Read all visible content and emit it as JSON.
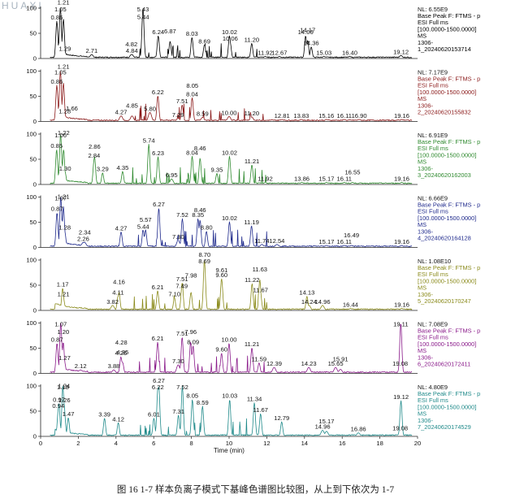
{
  "watermark": "HUAXI",
  "caption": "图 16 1-7 样本负离子模式下基峰色谱图比较图，从上到下依次为 1-7",
  "chart_data": {
    "type": "line",
    "xlabel": "Time (min)",
    "ylabel": "",
    "xlim": [
      0,
      20
    ],
    "ylim": [
      0,
      100
    ],
    "x_ticks": [
      0,
      2,
      4,
      6,
      8,
      10,
      12,
      14,
      16,
      18,
      20
    ],
    "y_ticks": [
      0,
      50,
      100
    ],
    "grid": false,
    "series": [
      {
        "color": "#000000",
        "nl": "NL: 6.55E9",
        "info": [
          "Base Peak F: FTMS - p",
          "ESI Full ms",
          "[100.0000-1500.0000]",
          "MS",
          "1306-",
          "1_20240620153714"
        ],
        "peaks": [
          [
            0.86,
            74
          ],
          [
            1.05,
            100
          ],
          [
            1.21,
            78
          ],
          [
            1.29,
            12
          ],
          [
            2.71,
            8
          ],
          [
            4.84,
            8
          ],
          [
            4.82,
            8
          ],
          [
            5.43,
            100
          ],
          [
            5.44,
            75
          ],
          [
            6.24,
            45
          ],
          [
            6.87,
            34
          ],
          [
            8.03,
            42
          ],
          [
            8.69,
            27
          ],
          [
            10.02,
            45
          ],
          [
            10.06,
            32
          ],
          [
            11.2,
            30
          ],
          [
            11.92,
            4
          ],
          [
            12.67,
            4
          ],
          [
            14.06,
            45
          ],
          [
            14.17,
            36
          ],
          [
            14.36,
            23
          ],
          [
            15.03,
            4
          ],
          [
            16.4,
            4
          ],
          [
            19.12,
            6
          ]
        ]
      },
      {
        "color": "#8b1a1a",
        "nl": "NL: 7.17E9",
        "info": [
          "Base Peak F: FTMS - p",
          "ESI Full ms",
          "[100.0000-1500.0000]",
          "MS",
          "1306-",
          "2_20240620155832"
        ],
        "peaks": [
          [
            0.86,
            72
          ],
          [
            1.05,
            100
          ],
          [
            1.21,
            76
          ],
          [
            1.28,
            13
          ],
          [
            1.66,
            6
          ],
          [
            4.27,
            11
          ],
          [
            4.85,
            11
          ],
          [
            5.8,
            18
          ],
          [
            6.22,
            51
          ],
          [
            7.29,
            6
          ],
          [
            7.51,
            33
          ],
          [
            8.04,
            47
          ],
          [
            8.05,
            38
          ],
          [
            8.59,
            8
          ],
          [
            10.0,
            10
          ],
          [
            11.2,
            9
          ],
          [
            12.81,
            4
          ],
          [
            13.83,
            4
          ],
          [
            15.16,
            4
          ],
          [
            16.11,
            4
          ],
          [
            16.9,
            4
          ],
          [
            19.16,
            4
          ]
        ]
      },
      {
        "color": "#2f8a2f",
        "nl": "NL: 6.91E9",
        "info": [
          "Base Peak F: FTMS - p",
          "ESI Full ms",
          "[100.0000-1500.0000]",
          "MS",
          "1306-",
          "3_20240620162003"
        ],
        "peaks": [
          [
            0.85,
            69
          ],
          [
            1.06,
            100
          ],
          [
            1.22,
            69
          ],
          [
            1.3,
            24
          ],
          [
            2.84,
            50
          ],
          [
            2.86,
            55
          ],
          [
            3.29,
            23
          ],
          [
            4.35,
            26
          ],
          [
            5.74,
            80
          ],
          [
            6.23,
            55
          ],
          [
            6.95,
            11
          ],
          [
            8.04,
            56
          ],
          [
            8.46,
            52
          ],
          [
            9.35,
            22
          ],
          [
            10.02,
            56
          ],
          [
            11.21,
            39
          ],
          [
            11.92,
            4
          ],
          [
            13.86,
            4
          ],
          [
            15.17,
            4
          ],
          [
            16.11,
            4
          ],
          [
            16.55,
            4
          ],
          [
            19.16,
            4
          ]
        ]
      },
      {
        "color": "#1f2a8c",
        "nl": "NL: 6.66E9",
        "info": [
          "Base Peak F: FTMS - p",
          "ESI Full ms",
          "[100.0000-1500.0000]",
          "MS",
          "1306-",
          "4_20240620164128"
        ],
        "peaks": [
          [
            0.87,
            69
          ],
          [
            1.07,
            100
          ],
          [
            1.21,
            81
          ],
          [
            1.28,
            32
          ],
          [
            2.26,
            10
          ],
          [
            2.34,
            10
          ],
          [
            4.27,
            31
          ],
          [
            5.44,
            34
          ],
          [
            5.57,
            35
          ],
          [
            6.27,
            78
          ],
          [
            7.3,
            14
          ],
          [
            7.52,
            57
          ],
          [
            8.35,
            57
          ],
          [
            8.8,
            32
          ],
          [
            8.46,
            54
          ],
          [
            10.02,
            51
          ],
          [
            11.19,
            43
          ],
          [
            11.74,
            6
          ],
          [
            12.54,
            6
          ],
          [
            15.17,
            4
          ],
          [
            16.11,
            4
          ],
          [
            16.49,
            4
          ],
          [
            19.16,
            4
          ]
        ]
      },
      {
        "color": "#8a8a1a",
        "nl": "NL: 1.08E10",
        "info": [
          "Base Peak F: FTMS - p",
          "ESI Full ms",
          "[100.0000-1500.0000]",
          "MS",
          "1306-",
          "5_20240620170247"
        ],
        "peaks": [
          [
            1.17,
            44
          ],
          [
            1.21,
            25
          ],
          [
            3.82,
            10
          ],
          [
            4.11,
            28
          ],
          [
            4.16,
            36
          ],
          [
            6.21,
            39
          ],
          [
            7.1,
            25
          ],
          [
            7.49,
            41
          ],
          [
            7.51,
            55
          ],
          [
            7.98,
            36
          ],
          [
            8.69,
            100
          ],
          [
            8.7,
            92
          ],
          [
            9.6,
            63
          ],
          [
            9.61,
            60
          ],
          [
            11.22,
            53
          ],
          [
            11.63,
            61
          ],
          [
            11.67,
            33
          ],
          [
            14.13,
            28
          ],
          [
            14.24,
            10
          ],
          [
            14.96,
            10
          ],
          [
            16.44,
            4
          ],
          [
            19.16,
            4
          ]
        ]
      },
      {
        "color": "#8a1a8a",
        "nl": "NL: 7.08E9",
        "info": [
          "Base Peak F: FTMS - p",
          "ESI Full ms",
          "[100.0000-1500.0000]",
          "MS",
          "1306-",
          "6_20240620172411"
        ],
        "peaks": [
          [
            0.87,
            60
          ],
          [
            1.07,
            100
          ],
          [
            1.2,
            62
          ],
          [
            1.27,
            23
          ],
          [
            2.12,
            7
          ],
          [
            3.88,
            7
          ],
          [
            4.26,
            33
          ],
          [
            4.35,
            22
          ],
          [
            4.28,
            28
          ],
          [
            6.21,
            62
          ],
          [
            7.3,
            17
          ],
          [
            7.51,
            72
          ],
          [
            7.96,
            62
          ],
          [
            8.09,
            55
          ],
          [
            9.6,
            40
          ],
          [
            10.0,
            60
          ],
          [
            11.21,
            51
          ],
          [
            11.59,
            21
          ],
          [
            12.39,
            12
          ],
          [
            14.23,
            12
          ],
          [
            15.65,
            12
          ],
          [
            15.91,
            8
          ],
          [
            19.08,
            12
          ],
          [
            19.11,
            100
          ]
        ]
      },
      {
        "color": "#1f8a8a",
        "nl": "NL: 4.80E9",
        "info": [
          "Base Peak F: FTMS - p",
          "ESI Full ms",
          "[100.0000-1500.0000]",
          "MS",
          "1306-",
          "7_20240620174529"
        ],
        "peaks": [
          [
            0.97,
            65
          ],
          [
            0.94,
            53
          ],
          [
            1.18,
            100
          ],
          [
            1.24,
            67
          ],
          [
            1.26,
            52
          ],
          [
            1.47,
            37
          ],
          [
            3.39,
            36
          ],
          [
            4.12,
            27
          ],
          [
            6.01,
            36
          ],
          [
            6.22,
            95
          ],
          [
            6.27,
            100
          ],
          [
            7.31,
            42
          ],
          [
            7.52,
            100
          ],
          [
            8.05,
            73
          ],
          [
            8.59,
            60
          ],
          [
            10.03,
            73
          ],
          [
            11.34,
            67
          ],
          [
            11.67,
            45
          ],
          [
            12.79,
            29
          ],
          [
            14.96,
            12
          ],
          [
            15.17,
            10
          ],
          [
            16.86,
            7
          ],
          [
            19.08,
            9
          ],
          [
            19.12,
            71
          ]
        ]
      }
    ]
  }
}
